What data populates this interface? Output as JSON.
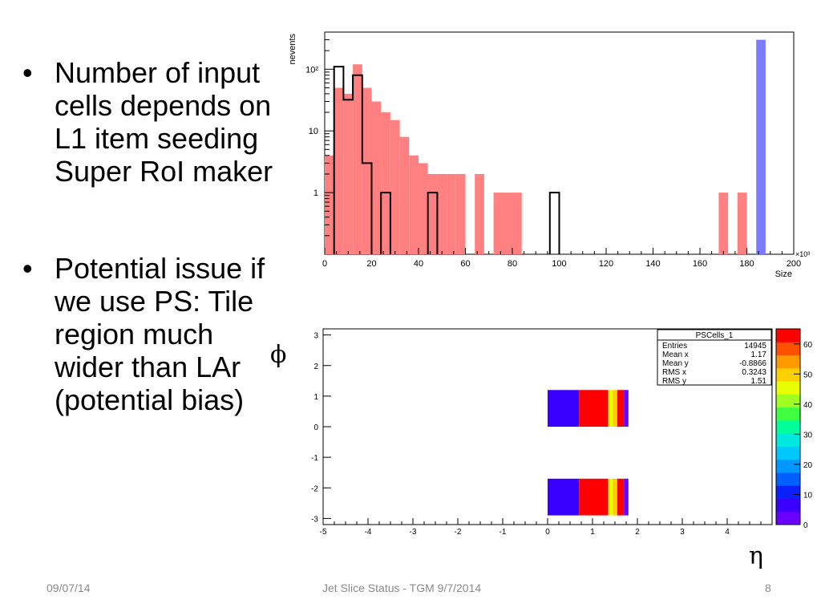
{
  "slide": {
    "bullet_symbol": "•",
    "bullets": [
      {
        "text": "Number of input cells depends on L1 item seeding Super RoI maker"
      },
      {
        "text": "Potential issue if we use PS: Tile region much wider than LAr (potential bias)"
      }
    ],
    "phi_label": "ϕ",
    "eta_label": "η",
    "footer": {
      "date": "09/07/14",
      "title": "Jet Slice Status - TGM 9/7/2014",
      "page": "8"
    },
    "colors": {
      "red_hist": "#ff8080",
      "blue_hist": "#7b7bff",
      "outline_hist": "#000000",
      "lower_band": "#7a1fff",
      "mid_band": "#ff0000",
      "hot_strip": "#a4ff30"
    }
  },
  "chart_data": [
    {
      "type": "bar",
      "subtype": "histogram",
      "title": "",
      "xlabel": "Size",
      "ylabel": "nevents",
      "x_multiplier": "×10³",
      "xlim": [
        0,
        200
      ],
      "ylim": [
        0.1,
        400
      ],
      "yscale": "log",
      "x_ticks": [
        "0",
        "20",
        "40",
        "60",
        "80",
        "100",
        "120",
        "140",
        "160",
        "180",
        "200"
      ],
      "y_ticks": [
        {
          "value": 1,
          "label": "1"
        },
        {
          "value": 10,
          "label": "10"
        },
        {
          "value": 100,
          "label": "10²"
        }
      ],
      "series": [
        {
          "name": "red filled",
          "color": "#ff8080",
          "bins": [
            [
              0,
              4,
              4
            ],
            [
              4,
              8,
              50
            ],
            [
              8,
              12,
              40
            ],
            [
              12,
              16,
              120
            ],
            [
              16,
              20,
              50
            ],
            [
              20,
              24,
              30
            ],
            [
              24,
              28,
              20
            ],
            [
              28,
              32,
              15
            ],
            [
              32,
              36,
              8
            ],
            [
              36,
              40,
              4
            ],
            [
              40,
              44,
              3
            ],
            [
              44,
              48,
              2
            ],
            [
              48,
              52,
              2
            ],
            [
              52,
              56,
              2
            ],
            [
              56,
              60,
              2
            ],
            [
              60,
              64,
              0
            ],
            [
              64,
              68,
              2
            ],
            [
              72,
              84,
              1
            ],
            [
              168,
              172,
              1
            ],
            [
              176,
              180,
              1
            ]
          ]
        },
        {
          "name": "blue filled",
          "color": "#7b7bff",
          "bins": [
            [
              184,
              188,
              300
            ]
          ]
        },
        {
          "name": "black outline",
          "color": "#000000",
          "bins": [
            [
              4,
              8,
              110
            ],
            [
              8,
              12,
              32
            ],
            [
              12,
              16,
              80
            ],
            [
              16,
              20,
              3
            ],
            [
              24,
              28,
              1
            ],
            [
              44,
              48,
              1
            ],
            [
              96,
              100,
              1
            ]
          ]
        }
      ]
    },
    {
      "type": "heatmap",
      "title": "PSCells_1",
      "xlabel": "η",
      "ylabel": "ϕ",
      "xlim": [
        -5,
        5
      ],
      "ylim": [
        -3.2,
        3.2
      ],
      "x_ticks": [
        "-5",
        "-4",
        "-3",
        "-2",
        "-1",
        "0",
        "1",
        "2",
        "3",
        "4"
      ],
      "y_ticks": [
        "3",
        "2",
        "1",
        "0",
        "-1",
        "-2",
        "-3"
      ],
      "z_range": [
        0,
        65
      ],
      "z_ticks": [
        "0",
        "10",
        "20",
        "30",
        "40",
        "50",
        "60"
      ],
      "stats": [
        {
          "label": "Entries",
          "value": "14945"
        },
        {
          "label": "Mean x",
          "value": "1.17"
        },
        {
          "label": "Mean y",
          "value": "-0.8866"
        },
        {
          "label": "RMS x",
          "value": "0.3243"
        },
        {
          "label": "RMS y",
          "value": "1.51"
        }
      ],
      "bands": [
        {
          "eta": [
            0.0,
            0.7
          ],
          "phi": [
            0,
            1.2
          ],
          "z": 5
        },
        {
          "eta": [
            0.7,
            1.35
          ],
          "phi": [
            0,
            1.2
          ],
          "z": 62
        },
        {
          "eta": [
            1.35,
            1.45
          ],
          "phi": [
            0,
            1.2
          ],
          "z": 45
        },
        {
          "eta": [
            1.45,
            1.55
          ],
          "phi": [
            0,
            1.2
          ],
          "z": 48
        },
        {
          "eta": [
            1.55,
            1.7
          ],
          "phi": [
            0,
            1.2
          ],
          "z": 62
        },
        {
          "eta": [
            1.7,
            1.8
          ],
          "phi": [
            0,
            1.2
          ],
          "z": 4
        },
        {
          "eta": [
            0.0,
            0.7
          ],
          "phi": [
            -2.9,
            -1.7
          ],
          "z": 5
        },
        {
          "eta": [
            0.7,
            1.35
          ],
          "phi": [
            -2.9,
            -1.7
          ],
          "z": 62
        },
        {
          "eta": [
            1.35,
            1.45
          ],
          "phi": [
            -2.9,
            -1.7
          ],
          "z": 45
        },
        {
          "eta": [
            1.45,
            1.55
          ],
          "phi": [
            -2.9,
            -1.7
          ],
          "z": 48
        },
        {
          "eta": [
            1.55,
            1.7
          ],
          "phi": [
            -2.9,
            -1.7
          ],
          "z": 62
        },
        {
          "eta": [
            1.7,
            1.8
          ],
          "phi": [
            -2.9,
            -1.7
          ],
          "z": 4
        }
      ]
    }
  ]
}
